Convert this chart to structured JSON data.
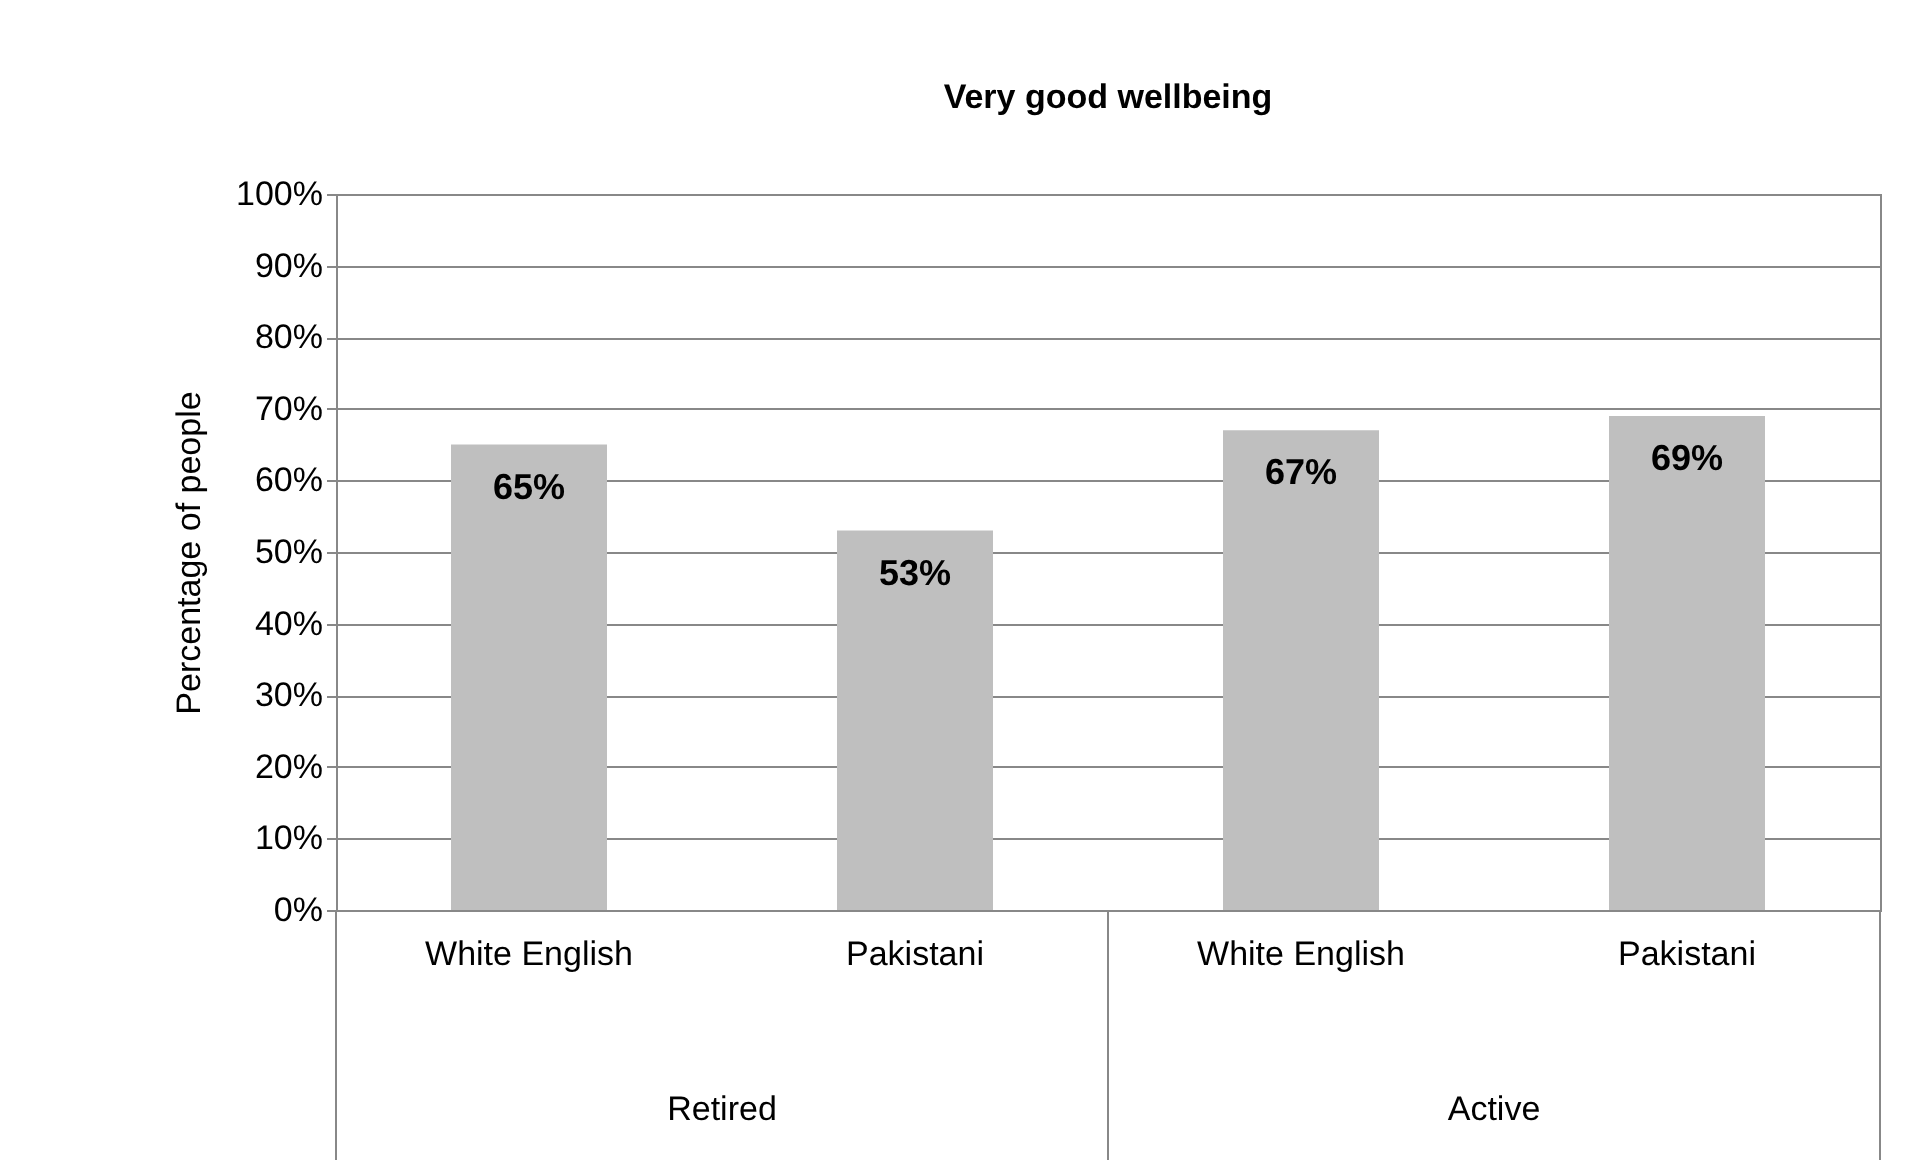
{
  "chart_data": {
    "type": "bar",
    "title": "Very good wellbeing",
    "ylabel": "Percentage of people",
    "categories": [
      "White English",
      "Pakistani",
      "White English",
      "Pakistani"
    ],
    "values": [
      65,
      53,
      67,
      69
    ],
    "color": "#bfbfbf",
    "data_labels": true,
    "value_labels": [
      "65%",
      "53%",
      "67%",
      "69%"
    ],
    "annotations": [
      "Retired",
      "Active"
    ],
    "ylim": [
      0,
      100
    ],
    "yticks": [
      {
        "value": 0,
        "label": "0%"
      },
      {
        "value": 10,
        "label": "10%"
      },
      {
        "value": 20,
        "label": "20%"
      },
      {
        "value": 30,
        "label": "30%"
      },
      {
        "value": 40,
        "label": "40%"
      },
      {
        "value": 50,
        "label": "50%"
      },
      {
        "value": 60,
        "label": "60%"
      },
      {
        "value": 70,
        "label": "70%"
      },
      {
        "value": 80,
        "label": "80%"
      },
      {
        "value": 90,
        "label": "90%"
      },
      {
        "value": 100,
        "label": "100%"
      }
    ],
    "grid": "y"
  }
}
